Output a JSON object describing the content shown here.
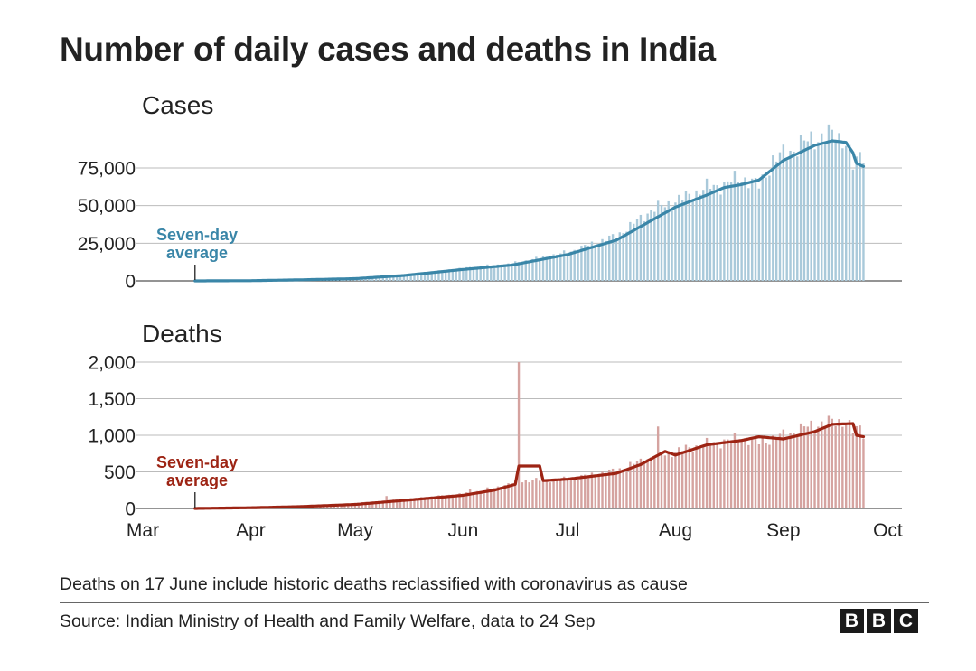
{
  "title": "Number of daily cases and deaths in India",
  "note": "Deaths on 17 June include historic deaths reclassified with coronavirus as cause",
  "source": "Source: Indian Ministry of Health and Family Welfare, data to 24 Sep",
  "logo": {
    "letters": [
      "B",
      "B",
      "C"
    ]
  },
  "colors": {
    "cases_line": "#3a86a8",
    "cases_bar": "#a9c9da",
    "deaths_line": "#9d2414",
    "deaths_bar": "#d5a3a0",
    "grid": "#bbbbbb",
    "text": "#222222"
  },
  "chart_data": [
    {
      "type": "bar",
      "title": "Cases",
      "xlabel": "",
      "ylabel": "",
      "x_ticks": [
        "Mar",
        "Apr",
        "May",
        "Jun",
        "Jul",
        "Aug",
        "Sep",
        "Oct"
      ],
      "y_ticks": [
        0,
        25000,
        50000,
        75000
      ],
      "y_tick_labels": [
        "0",
        "25,000",
        "50,000",
        "75,000"
      ],
      "ylim": [
        0,
        100000
      ],
      "grid": true,
      "annotation": {
        "label": "Seven-day average",
        "lines": [
          "Seven-day",
          "average"
        ],
        "date": "2020-03-16"
      },
      "daily_anchors": [
        [
          "2020-03-01",
          0
        ],
        [
          "2020-03-16",
          15
        ],
        [
          "2020-04-01",
          300
        ],
        [
          "2020-04-15",
          1000
        ],
        [
          "2020-05-01",
          1900
        ],
        [
          "2020-05-15",
          3900
        ],
        [
          "2020-06-01",
          8400
        ],
        [
          "2020-06-15",
          11500
        ],
        [
          "2020-07-01",
          19000
        ],
        [
          "2020-07-15",
          30000
        ],
        [
          "2020-07-20",
          38000
        ],
        [
          "2020-07-25",
          47000
        ],
        [
          "2020-08-01",
          53000
        ],
        [
          "2020-08-10",
          62000
        ],
        [
          "2020-08-15",
          64000
        ],
        [
          "2020-08-20",
          69000
        ],
        [
          "2020-08-25",
          63000
        ],
        [
          "2020-08-29",
          80000
        ],
        [
          "2020-09-05",
          89000
        ],
        [
          "2020-09-10",
          95000
        ],
        [
          "2020-09-16",
          97000
        ],
        [
          "2020-09-19",
          93000
        ],
        [
          "2020-09-21",
          75000
        ],
        [
          "2020-09-23",
          83000
        ],
        [
          "2020-09-24",
          86000
        ]
      ],
      "series": [
        {
          "name": "Seven-day average",
          "points": [
            [
              "2020-03-16",
              0
            ],
            [
              "2020-04-01",
              150
            ],
            [
              "2020-04-15",
              700
            ],
            [
              "2020-05-01",
              1500
            ],
            [
              "2020-05-15",
              3600
            ],
            [
              "2020-06-01",
              7600
            ],
            [
              "2020-06-15",
              10500
            ],
            [
              "2020-07-01",
              17500
            ],
            [
              "2020-07-15",
              27000
            ],
            [
              "2020-07-25",
              40000
            ],
            [
              "2020-08-01",
              49000
            ],
            [
              "2020-08-10",
              57000
            ],
            [
              "2020-08-15",
              62000
            ],
            [
              "2020-08-20",
              64000
            ],
            [
              "2020-08-25",
              67000
            ],
            [
              "2020-09-01",
              80000
            ],
            [
              "2020-09-10",
              90000
            ],
            [
              "2020-09-15",
              93000
            ],
            [
              "2020-09-19",
              92000
            ],
            [
              "2020-09-21",
              85000
            ],
            [
              "2020-09-22",
              78000
            ],
            [
              "2020-09-24",
              76000
            ]
          ]
        }
      ]
    },
    {
      "type": "bar",
      "title": "Deaths",
      "xlabel": "",
      "ylabel": "",
      "x_ticks": [
        "Mar",
        "Apr",
        "May",
        "Jun",
        "Jul",
        "Aug",
        "Sep",
        "Oct"
      ],
      "y_ticks": [
        0,
        500,
        1000,
        1500,
        2000
      ],
      "y_tick_labels": [
        "0",
        "500",
        "1,000",
        "1,500",
        "2,000"
      ],
      "ylim": [
        0,
        2000
      ],
      "grid": true,
      "annotation": {
        "label": "Seven-day average",
        "lines": [
          "Seven-day",
          "average"
        ],
        "date": "2020-03-16"
      },
      "daily_anchors": [
        [
          "2020-03-01",
          0
        ],
        [
          "2020-03-16",
          2
        ],
        [
          "2020-04-01",
          20
        ],
        [
          "2020-04-15",
          35
        ],
        [
          "2020-05-01",
          75
        ],
        [
          "2020-05-15",
          120
        ],
        [
          "2020-06-01",
          200
        ],
        [
          "2020-06-10",
          280
        ],
        [
          "2020-06-16",
          360
        ],
        [
          "2020-06-18",
          380
        ],
        [
          "2020-07-01",
          400
        ],
        [
          "2020-07-15",
          520
        ],
        [
          "2020-07-25",
          700
        ],
        [
          "2020-08-01",
          780
        ],
        [
          "2020-08-10",
          880
        ],
        [
          "2020-08-20",
          960
        ],
        [
          "2020-08-25",
          900
        ],
        [
          "2020-09-01",
          1000
        ],
        [
          "2020-09-10",
          1150
        ],
        [
          "2020-09-15",
          1180
        ],
        [
          "2020-09-19",
          1200
        ],
        [
          "2020-09-21",
          1050
        ],
        [
          "2020-09-23",
          1100
        ],
        [
          "2020-09-24",
          1050
        ]
      ],
      "spikes": [
        [
          "2020-06-17",
          2000
        ],
        [
          "2020-07-27",
          1120
        ],
        [
          "2020-05-10",
          170
        ],
        [
          "2020-06-03",
          270
        ]
      ],
      "series": [
        {
          "name": "Seven-day average",
          "points": [
            [
              "2020-03-16",
              0
            ],
            [
              "2020-04-01",
              10
            ],
            [
              "2020-04-15",
              25
            ],
            [
              "2020-05-01",
              55
            ],
            [
              "2020-05-15",
              110
            ],
            [
              "2020-06-01",
              180
            ],
            [
              "2020-06-10",
              250
            ],
            [
              "2020-06-16",
              330
            ],
            [
              "2020-06-17",
              580
            ],
            [
              "2020-06-23",
              580
            ],
            [
              "2020-06-24",
              380
            ],
            [
              "2020-07-01",
              400
            ],
            [
              "2020-07-15",
              480
            ],
            [
              "2020-07-22",
              600
            ],
            [
              "2020-07-29",
              780
            ],
            [
              "2020-08-01",
              730
            ],
            [
              "2020-08-10",
              870
            ],
            [
              "2020-08-20",
              930
            ],
            [
              "2020-08-25",
              980
            ],
            [
              "2020-09-01",
              950
            ],
            [
              "2020-09-10",
              1050
            ],
            [
              "2020-09-15",
              1150
            ],
            [
              "2020-09-21",
              1160
            ],
            [
              "2020-09-22",
              1000
            ],
            [
              "2020-09-24",
              980
            ]
          ]
        }
      ]
    }
  ]
}
